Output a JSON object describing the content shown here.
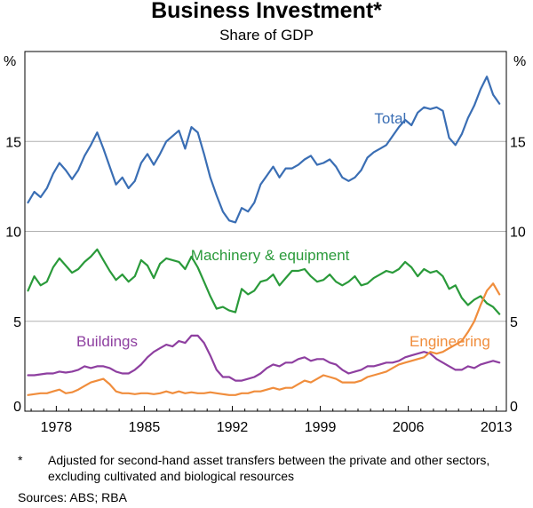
{
  "title": "Business Investment*",
  "subtitle": "Share of GDP",
  "footnote": {
    "marker": "*",
    "text": "Adjusted for second-hand asset transfers between the private and other sectors, excluding cultivated and biological resources"
  },
  "sources": "Sources:  ABS; RBA",
  "chart_data": {
    "type": "line",
    "title": "Business Investment*",
    "subtitle": "Share of GDP",
    "ylabel_left": "%",
    "ylabel_right": "%",
    "xlim": [
      1975.5,
      2013.8
    ],
    "ylim": [
      0,
      20
    ],
    "yticks": [
      0,
      5,
      10,
      15
    ],
    "xticks": [
      1978,
      1985,
      1992,
      1999,
      2006,
      2013
    ],
    "grid": true,
    "series": [
      {
        "name": "Total",
        "color": "#3a6eb4",
        "label_at": [
          2003.3,
          16.0
        ],
        "x": [
          1975.75,
          1976.25,
          1976.75,
          1977.25,
          1977.75,
          1978.25,
          1978.75,
          1979.25,
          1979.75,
          1980.25,
          1980.75,
          1981.25,
          1981.75,
          1982.25,
          1982.75,
          1983.25,
          1983.75,
          1984.25,
          1984.75,
          1985.25,
          1985.75,
          1986.25,
          1986.75,
          1987.25,
          1987.75,
          1988.25,
          1988.75,
          1989.25,
          1989.75,
          1990.25,
          1990.75,
          1991.25,
          1991.75,
          1992.25,
          1992.75,
          1993.25,
          1993.75,
          1994.25,
          1994.75,
          1995.25,
          1995.75,
          1996.25,
          1996.75,
          1997.25,
          1997.75,
          1998.25,
          1998.75,
          1999.25,
          1999.75,
          2000.25,
          2000.75,
          2001.25,
          2001.75,
          2002.25,
          2002.75,
          2003.25,
          2003.75,
          2004.25,
          2004.75,
          2005.25,
          2005.75,
          2006.25,
          2006.75,
          2007.25,
          2007.75,
          2008.25,
          2008.75,
          2009.25,
          2009.75,
          2010.25,
          2010.75,
          2011.25,
          2011.75,
          2012.25,
          2012.75,
          2013.25
        ],
        "values": [
          11.6,
          12.2,
          11.9,
          12.4,
          13.2,
          13.8,
          13.4,
          12.9,
          13.4,
          14.2,
          14.8,
          15.5,
          14.6,
          13.6,
          12.6,
          13.0,
          12.4,
          12.8,
          13.8,
          14.3,
          13.7,
          14.3,
          15.0,
          15.3,
          15.6,
          14.6,
          15.8,
          15.5,
          14.3,
          13.0,
          12.0,
          11.1,
          10.6,
          10.5,
          11.3,
          11.1,
          11.6,
          12.6,
          13.1,
          13.6,
          13.0,
          13.5,
          13.5,
          13.7,
          14.0,
          14.2,
          13.7,
          13.8,
          14.0,
          13.6,
          13.0,
          12.8,
          13.0,
          13.4,
          14.1,
          14.4,
          14.6,
          14.8,
          15.3,
          15.8,
          16.2,
          15.9,
          16.6,
          16.9,
          16.8,
          16.9,
          16.7,
          15.2,
          14.8,
          15.4,
          16.3,
          17.0,
          17.9,
          18.6,
          17.6,
          17.1
        ]
      },
      {
        "name": "Machinery & equipment",
        "color": "#2a9a3a",
        "label_at": [
          1988.7,
          8.4
        ],
        "x": [
          1975.75,
          1976.25,
          1976.75,
          1977.25,
          1977.75,
          1978.25,
          1978.75,
          1979.25,
          1979.75,
          1980.25,
          1980.75,
          1981.25,
          1981.75,
          1982.25,
          1982.75,
          1983.25,
          1983.75,
          1984.25,
          1984.75,
          1985.25,
          1985.75,
          1986.25,
          1986.75,
          1987.25,
          1987.75,
          1988.25,
          1988.75,
          1989.25,
          1989.75,
          1990.25,
          1990.75,
          1991.25,
          1991.75,
          1992.25,
          1992.75,
          1993.25,
          1993.75,
          1994.25,
          1994.75,
          1995.25,
          1995.75,
          1996.25,
          1996.75,
          1997.25,
          1997.75,
          1998.25,
          1998.75,
          1999.25,
          1999.75,
          2000.25,
          2000.75,
          2001.25,
          2001.75,
          2002.25,
          2002.75,
          2003.25,
          2003.75,
          2004.25,
          2004.75,
          2005.25,
          2005.75,
          2006.25,
          2006.75,
          2007.25,
          2007.75,
          2008.25,
          2008.75,
          2009.25,
          2009.75,
          2010.25,
          2010.75,
          2011.25,
          2011.75,
          2012.25,
          2012.75,
          2013.25
        ],
        "values": [
          6.7,
          7.5,
          7.0,
          7.2,
          8.0,
          8.5,
          8.1,
          7.7,
          7.9,
          8.3,
          8.6,
          9.0,
          8.4,
          7.8,
          7.3,
          7.6,
          7.2,
          7.5,
          8.4,
          8.1,
          7.4,
          8.2,
          8.5,
          8.4,
          8.3,
          7.9,
          8.6,
          8.0,
          7.2,
          6.4,
          5.7,
          5.8,
          5.6,
          5.5,
          6.8,
          6.5,
          6.7,
          7.2,
          7.3,
          7.6,
          7.0,
          7.4,
          7.8,
          7.8,
          7.9,
          7.5,
          7.2,
          7.3,
          7.6,
          7.2,
          7.0,
          7.2,
          7.5,
          7.0,
          7.1,
          7.4,
          7.6,
          7.8,
          7.7,
          7.9,
          8.3,
          8.0,
          7.5,
          7.9,
          7.7,
          7.8,
          7.5,
          6.8,
          7.0,
          6.3,
          5.9,
          6.2,
          6.4,
          6.0,
          5.8,
          5.4
        ]
      },
      {
        "name": "Buildings",
        "color": "#8e3fa0",
        "label_at": [
          1979.6,
          3.6
        ],
        "x": [
          1975.75,
          1976.25,
          1976.75,
          1977.25,
          1977.75,
          1978.25,
          1978.75,
          1979.25,
          1979.75,
          1980.25,
          1980.75,
          1981.25,
          1981.75,
          1982.25,
          1982.75,
          1983.25,
          1983.75,
          1984.25,
          1984.75,
          1985.25,
          1985.75,
          1986.25,
          1986.75,
          1987.25,
          1987.75,
          1988.25,
          1988.75,
          1989.25,
          1989.75,
          1990.25,
          1990.75,
          1991.25,
          1991.75,
          1992.25,
          1992.75,
          1993.25,
          1993.75,
          1994.25,
          1994.75,
          1995.25,
          1995.75,
          1996.25,
          1996.75,
          1997.25,
          1997.75,
          1998.25,
          1998.75,
          1999.25,
          1999.75,
          2000.25,
          2000.75,
          2001.25,
          2001.75,
          2002.25,
          2002.75,
          2003.25,
          2003.75,
          2004.25,
          2004.75,
          2005.25,
          2005.75,
          2006.25,
          2006.75,
          2007.25,
          2007.75,
          2008.25,
          2008.75,
          2009.25,
          2009.75,
          2010.25,
          2010.75,
          2011.25,
          2011.75,
          2012.25,
          2012.75,
          2013.25
        ],
        "values": [
          2.0,
          2.0,
          2.05,
          2.1,
          2.1,
          2.2,
          2.15,
          2.2,
          2.3,
          2.5,
          2.4,
          2.5,
          2.5,
          2.4,
          2.2,
          2.1,
          2.1,
          2.3,
          2.6,
          3.0,
          3.3,
          3.5,
          3.7,
          3.6,
          3.9,
          3.8,
          4.2,
          4.2,
          3.8,
          3.1,
          2.3,
          1.9,
          1.9,
          1.7,
          1.7,
          1.8,
          1.9,
          2.1,
          2.4,
          2.6,
          2.5,
          2.7,
          2.7,
          2.9,
          3.0,
          2.8,
          2.9,
          2.9,
          2.7,
          2.6,
          2.3,
          2.1,
          2.2,
          2.3,
          2.5,
          2.5,
          2.6,
          2.7,
          2.7,
          2.8,
          3.0,
          3.1,
          3.2,
          3.3,
          3.2,
          2.9,
          2.7,
          2.5,
          2.3,
          2.3,
          2.5,
          2.4,
          2.6,
          2.7,
          2.8,
          2.7
        ]
      },
      {
        "name": "Engineering",
        "color": "#f08d3c",
        "label_at": [
          2006.1,
          3.6
        ],
        "x": [
          1975.75,
          1976.25,
          1976.75,
          1977.25,
          1977.75,
          1978.25,
          1978.75,
          1979.25,
          1979.75,
          1980.25,
          1980.75,
          1981.25,
          1981.75,
          1982.25,
          1982.75,
          1983.25,
          1983.75,
          1984.25,
          1984.75,
          1985.25,
          1985.75,
          1986.25,
          1986.75,
          1987.25,
          1987.75,
          1988.25,
          1988.75,
          1989.25,
          1989.75,
          1990.25,
          1990.75,
          1991.25,
          1991.75,
          1992.25,
          1992.75,
          1993.25,
          1993.75,
          1994.25,
          1994.75,
          1995.25,
          1995.75,
          1996.25,
          1996.75,
          1997.25,
          1997.75,
          1998.25,
          1998.75,
          1999.25,
          1999.75,
          2000.25,
          2000.75,
          2001.25,
          2001.75,
          2002.25,
          2002.75,
          2003.25,
          2003.75,
          2004.25,
          2004.75,
          2005.25,
          2005.75,
          2006.25,
          2006.75,
          2007.25,
          2007.75,
          2008.25,
          2008.75,
          2009.25,
          2009.75,
          2010.25,
          2010.75,
          2011.25,
          2011.75,
          2012.25,
          2012.75,
          2013.25
        ],
        "values": [
          0.9,
          0.95,
          1.0,
          1.0,
          1.1,
          1.2,
          1.0,
          1.05,
          1.2,
          1.4,
          1.6,
          1.7,
          1.8,
          1.5,
          1.1,
          1.0,
          1.0,
          0.95,
          1.0,
          1.0,
          0.95,
          1.0,
          1.1,
          1.0,
          1.1,
          1.0,
          1.05,
          1.0,
          1.0,
          1.05,
          1.0,
          0.95,
          0.9,
          0.9,
          1.0,
          1.0,
          1.1,
          1.1,
          1.2,
          1.3,
          1.2,
          1.3,
          1.3,
          1.5,
          1.7,
          1.6,
          1.8,
          2.0,
          1.9,
          1.8,
          1.6,
          1.6,
          1.6,
          1.7,
          1.9,
          2.0,
          2.1,
          2.2,
          2.4,
          2.6,
          2.7,
          2.8,
          2.9,
          3.0,
          3.3,
          3.2,
          3.3,
          3.5,
          3.7,
          3.9,
          4.4,
          5.0,
          5.9,
          6.7,
          7.1,
          6.5
        ]
      }
    ]
  }
}
